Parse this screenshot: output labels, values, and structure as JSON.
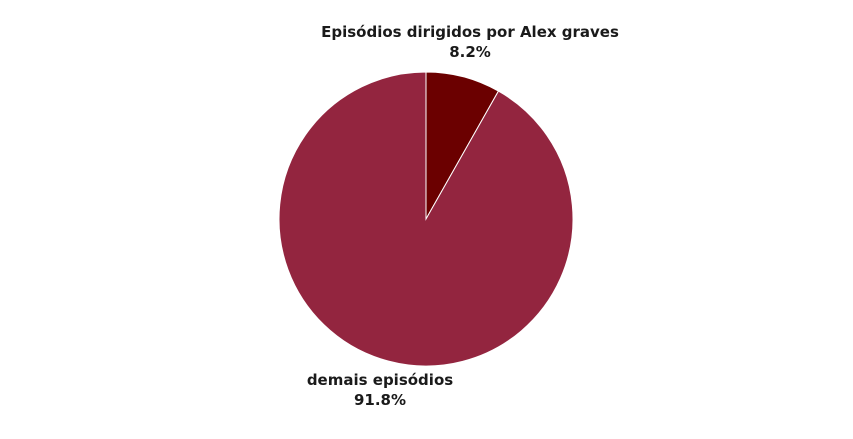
{
  "chart_data": {
    "type": "pie",
    "title": "",
    "slices": [
      {
        "label": "Episódios dirigidos por Alex graves",
        "value": 8.2,
        "value_label": "8.2%",
        "color": "#6b0000"
      },
      {
        "label": "demais episódios",
        "value": 91.8,
        "value_label": "91.8%",
        "color": "#93253f"
      }
    ],
    "legend": "none",
    "start_angle": "12 o'clock",
    "direction": "clockwise"
  }
}
